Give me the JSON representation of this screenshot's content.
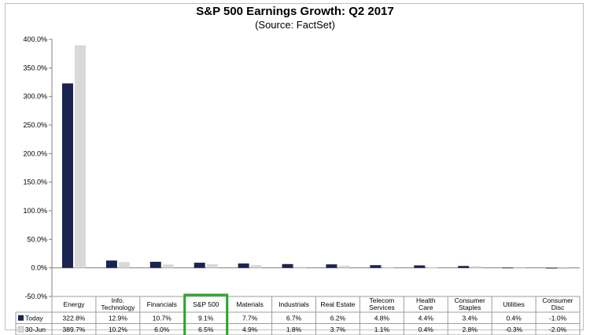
{
  "chart_data": {
    "type": "bar",
    "title": "S&P 500 Earnings Growth: Q2 2017",
    "subtitle": "(Source: FactSet)",
    "categories": [
      [
        "Energy"
      ],
      [
        "Info.",
        "Technology"
      ],
      [
        "Financials"
      ],
      [
        "S&P 500"
      ],
      [
        "Materials"
      ],
      [
        "Industrials"
      ],
      [
        "Real Estate"
      ],
      [
        "Telecom",
        "Services"
      ],
      [
        "Health",
        "Care"
      ],
      [
        "Consumer",
        "Staples"
      ],
      [
        "Utilities"
      ],
      [
        "Consumer",
        "Disc"
      ]
    ],
    "series": [
      {
        "name": "Today",
        "color": "#1a2450",
        "values": [
          322.8,
          12.9,
          10.7,
          9.1,
          7.7,
          6.7,
          6.2,
          4.8,
          4.4,
          3.4,
          0.4,
          -1.0
        ],
        "labels": [
          "322.8%",
          "12.9%",
          "10.7%",
          "9.1%",
          "7.7%",
          "6.7%",
          "6.2%",
          "4.8%",
          "4.4%",
          "3.4%",
          "0.4%",
          "-1.0%"
        ]
      },
      {
        "name": "30-Jun",
        "color": "#d9d9d9",
        "values": [
          389.7,
          10.2,
          6.0,
          6.5,
          4.9,
          1.8,
          3.7,
          1.1,
          0.4,
          2.8,
          -0.3,
          -2.0
        ],
        "labels": [
          "389.7%",
          "10.2%",
          "6.0%",
          "6.5%",
          "4.9%",
          "1.8%",
          "3.7%",
          "1.1%",
          "0.4%",
          "2.8%",
          "-0.3%",
          "-2.0%"
        ]
      }
    ],
    "yticks": [
      "400.0%",
      "350.0%",
      "300.0%",
      "250.0%",
      "200.0%",
      "150.0%",
      "100.0%",
      "50.0%",
      "0.0%",
      "-50.0%"
    ],
    "ylim": [
      -50,
      400
    ],
    "highlight_category_index": 3,
    "highlight_color": "#2aa52a",
    "grid": false,
    "legend": "data-table"
  }
}
